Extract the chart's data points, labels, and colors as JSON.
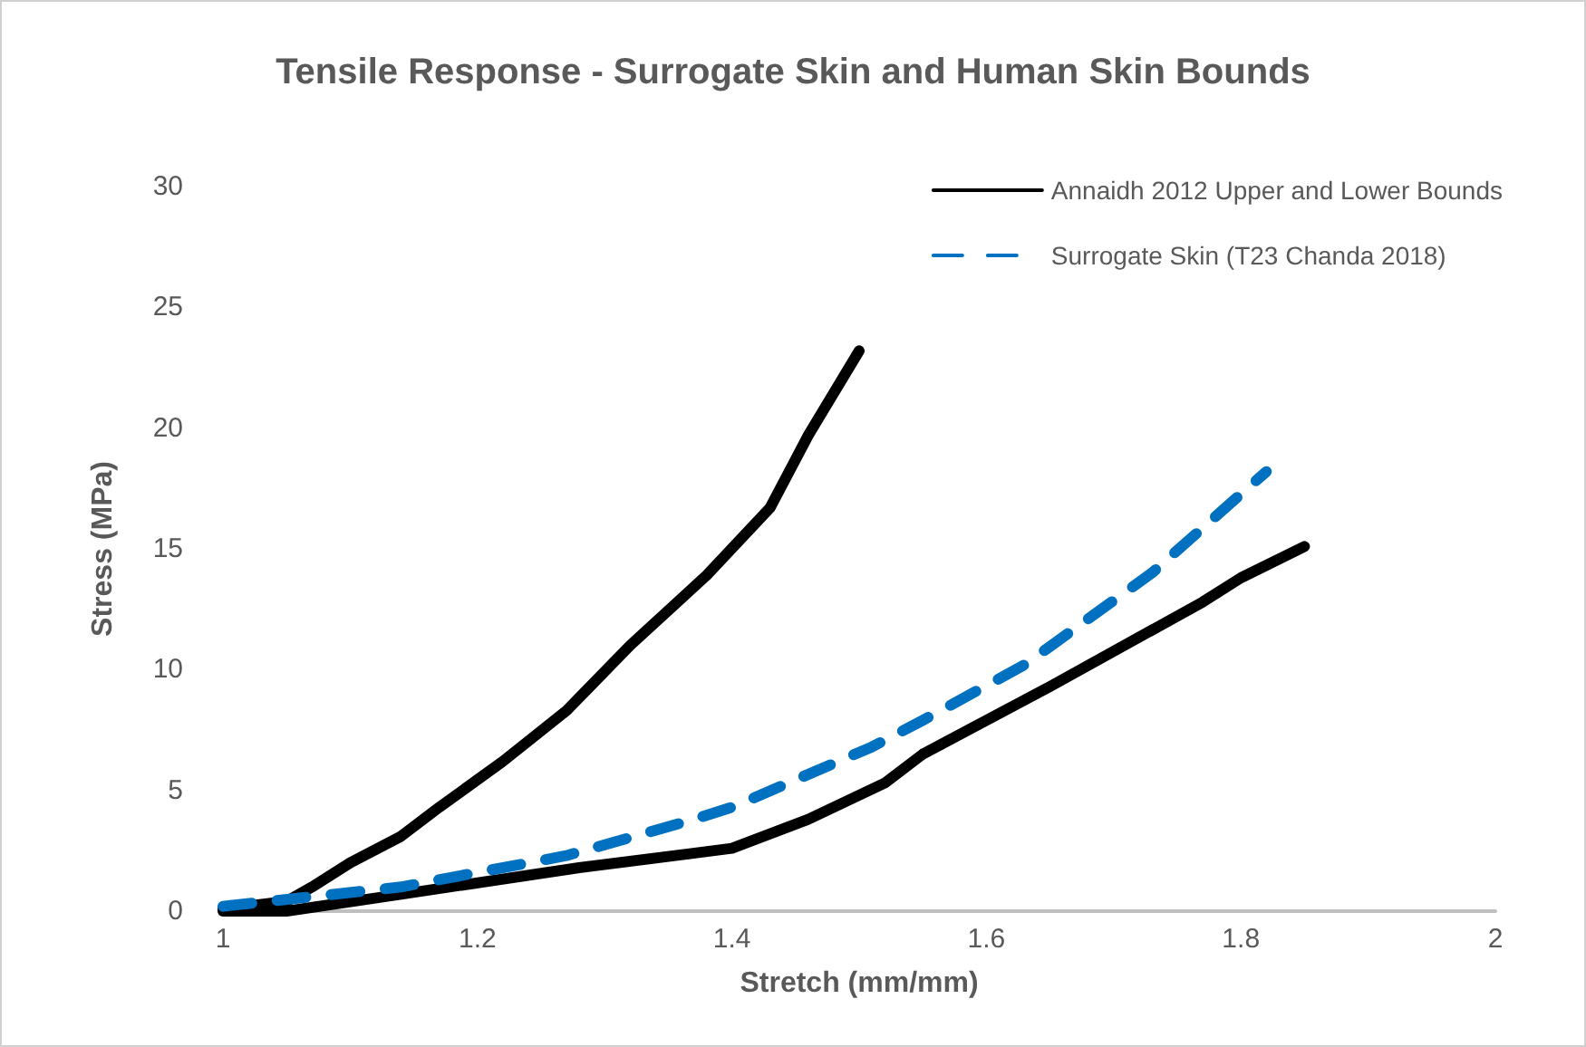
{
  "chart_data": {
    "type": "line",
    "title": "Tensile Response - Surrogate Skin and Human Skin Bounds",
    "xlabel": "Stretch (mm/mm)",
    "ylabel": "Stress (MPa)",
    "xlim": [
      1,
      2
    ],
    "xticks": [
      1,
      1.2,
      1.4,
      1.6,
      1.8,
      2
    ],
    "ylim": [
      0,
      30
    ],
    "yticks": [
      0,
      5,
      10,
      15,
      20,
      25,
      30
    ],
    "grid": false,
    "legend": "top right",
    "marker": "none",
    "series": [
      {
        "name": "Annaidh 2012 Upper and Lower Bounds",
        "color": "#000000",
        "line_style": "solid",
        "x": [
          1,
          1.05,
          1.07,
          1.1,
          1.14,
          1.17,
          1.22,
          1.27,
          1.32,
          1.38,
          1.43,
          1.46,
          1.5
        ],
        "values": [
          0.1,
          0.4,
          1.0,
          2.0,
          3.1,
          4.3,
          6.2,
          8.3,
          11.0,
          13.9,
          16.7,
          19.7,
          23.2
        ]
      },
      {
        "color": "#000000",
        "line_style": "solid",
        "x": [
          1,
          1.05,
          1.14,
          1.28,
          1.4,
          1.46,
          1.52,
          1.55,
          1.65,
          1.77,
          1.8,
          1.85
        ],
        "values": [
          0,
          0,
          0.7,
          1.8,
          2.6,
          3.8,
          5.3,
          6.5,
          9.3,
          12.8,
          13.8,
          15.1
        ]
      },
      {
        "name": "Surrogate Skin (T23 Chanda 2018)",
        "color": "#0070c0",
        "line_style": "dashed",
        "x": [
          1,
          1.07,
          1.14,
          1.27,
          1.37,
          1.4,
          1.51,
          1.55,
          1.63,
          1.73,
          1.82
        ],
        "values": [
          0.2,
          0.6,
          1.0,
          2.3,
          3.8,
          4.3,
          6.8,
          7.9,
          10.2,
          14.0,
          18.2
        ]
      }
    ]
  }
}
